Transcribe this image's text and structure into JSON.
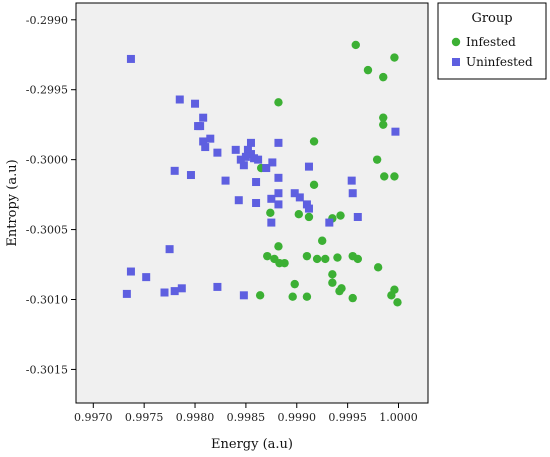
{
  "chart_data": {
    "type": "scatter",
    "xlabel": "Energy (a.u)",
    "ylabel": "Entropy (a.u)",
    "xlim": [
      0.99683,
      1.00029
    ],
    "ylim": [
      -0.30174,
      -0.29888
    ],
    "xticks": [
      0.997,
      0.9975,
      0.998,
      0.9985,
      0.999,
      0.9995,
      1.0
    ],
    "xtick_labels": [
      "0.9970",
      "0.9975",
      "0.9980",
      "0.9985",
      "0.9990",
      "0.9995",
      "1.0000"
    ],
    "yticks": [
      -0.299,
      -0.2995,
      -0.3,
      -0.3005,
      -0.301,
      -0.3015
    ],
    "ytick_labels": [
      "-0.2990",
      "-0.2995",
      "-0.3000",
      "-0.3005",
      "-0.3010",
      "-0.3015"
    ],
    "grid": false,
    "legend_title": "Group",
    "legend_position": "top-right-outside",
    "series": [
      {
        "name": "Infested",
        "marker": "circle",
        "color": "#3cb034",
        "points": [
          [
            0.99958,
            -0.29918
          ],
          [
            0.9997,
            -0.29936
          ],
          [
            0.99996,
            -0.29927
          ],
          [
            0.99985,
            -0.29941
          ],
          [
            0.99882,
            -0.29959
          ],
          [
            0.99985,
            -0.2997
          ],
          [
            0.99985,
            -0.29975
          ],
          [
            0.99917,
            -0.29987
          ],
          [
            0.99979,
            -0.3
          ],
          [
            0.99986,
            -0.30012
          ],
          [
            0.99996,
            -0.30012
          ],
          [
            0.99865,
            -0.30006
          ],
          [
            0.99917,
            -0.30018
          ],
          [
            0.99874,
            -0.30038
          ],
          [
            0.99902,
            -0.30039
          ],
          [
            0.99912,
            -0.30041
          ],
          [
            0.99935,
            -0.30042
          ],
          [
            0.99943,
            -0.3004
          ],
          [
            0.99882,
            -0.30062
          ],
          [
            0.99925,
            -0.30058
          ],
          [
            0.99871,
            -0.30069
          ],
          [
            0.99878,
            -0.30071
          ],
          [
            0.99883,
            -0.30074
          ],
          [
            0.99888,
            -0.30074
          ],
          [
            0.9991,
            -0.30069
          ],
          [
            0.9992,
            -0.30071
          ],
          [
            0.99928,
            -0.30071
          ],
          [
            0.9994,
            -0.3007
          ],
          [
            0.99955,
            -0.30069
          ],
          [
            0.9996,
            -0.30071
          ],
          [
            0.9998,
            -0.30077
          ],
          [
            0.99935,
            -0.30082
          ],
          [
            0.99935,
            -0.30088
          ],
          [
            0.99944,
            -0.30092
          ],
          [
            0.99898,
            -0.30089
          ],
          [
            0.99942,
            -0.30094
          ],
          [
            0.99864,
            -0.30097
          ],
          [
            0.99896,
            -0.30098
          ],
          [
            0.9991,
            -0.30098
          ],
          [
            0.99955,
            -0.30099
          ],
          [
            0.99993,
            -0.30097
          ],
          [
            0.99996,
            -0.30093
          ],
          [
            0.99999,
            -0.30102
          ]
        ]
      },
      {
        "name": "Uninfested",
        "marker": "square",
        "color": "#5e5fe0",
        "points": [
          [
            0.99737,
            -0.29928
          ],
          [
            0.99785,
            -0.29957
          ],
          [
            0.998,
            -0.2996
          ],
          [
            0.99808,
            -0.2997
          ],
          [
            0.99805,
            -0.29976
          ],
          [
            0.99803,
            -0.29976
          ],
          [
            0.99808,
            -0.29987
          ],
          [
            0.99815,
            -0.29985
          ],
          [
            0.9981,
            -0.29991
          ],
          [
            0.99822,
            -0.29995
          ],
          [
            0.99855,
            -0.29988
          ],
          [
            0.9984,
            -0.29993
          ],
          [
            0.99852,
            -0.29993
          ],
          [
            0.99855,
            -0.29996
          ],
          [
            0.9985,
            -0.29998
          ],
          [
            0.99858,
            -0.29999
          ],
          [
            0.99845,
            -0.3
          ],
          [
            0.99848,
            -0.30004
          ],
          [
            0.99862,
            -0.3
          ],
          [
            0.99876,
            -0.30002
          ],
          [
            0.9987,
            -0.30006
          ],
          [
            0.99882,
            -0.29988
          ],
          [
            0.99997,
            -0.2998
          ],
          [
            0.9978,
            -0.30008
          ],
          [
            0.99796,
            -0.30011
          ],
          [
            0.9983,
            -0.30015
          ],
          [
            0.9986,
            -0.30016
          ],
          [
            0.99882,
            -0.30013
          ],
          [
            0.99912,
            -0.30005
          ],
          [
            0.99954,
            -0.30015
          ],
          [
            0.99875,
            -0.30028
          ],
          [
            0.99882,
            -0.30024
          ],
          [
            0.99898,
            -0.30024
          ],
          [
            0.99903,
            -0.30027
          ],
          [
            0.9991,
            -0.30032
          ],
          [
            0.99912,
            -0.30035
          ],
          [
            0.99843,
            -0.30029
          ],
          [
            0.9986,
            -0.30031
          ],
          [
            0.99882,
            -0.30032
          ],
          [
            0.99955,
            -0.30024
          ],
          [
            0.99875,
            -0.30045
          ],
          [
            0.99932,
            -0.30045
          ],
          [
            0.9996,
            -0.30041
          ],
          [
            0.99775,
            -0.30064
          ],
          [
            0.99737,
            -0.3008
          ],
          [
            0.99752,
            -0.30084
          ],
          [
            0.99733,
            -0.30096
          ],
          [
            0.9977,
            -0.30095
          ],
          [
            0.9978,
            -0.30094
          ],
          [
            0.99787,
            -0.30092
          ],
          [
            0.99822,
            -0.30091
          ],
          [
            0.99848,
            -0.30097
          ]
        ]
      }
    ]
  }
}
